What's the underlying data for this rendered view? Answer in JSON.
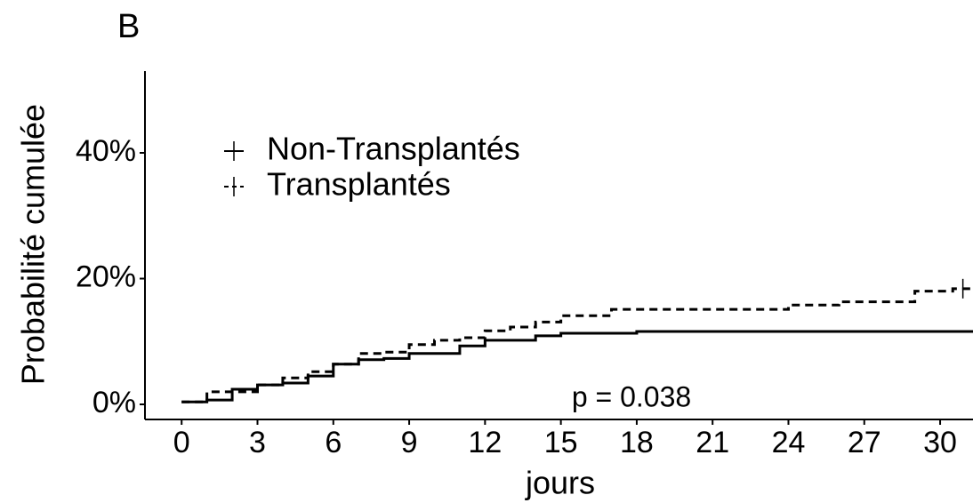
{
  "chart_data": {
    "type": "step",
    "panel_label": "B",
    "xlabel": "jours",
    "ylabel": "Probabilité cumulée",
    "annotation": "p = 0.038",
    "xlim": [
      -1.45,
      31.3
    ],
    "xticks": [
      0,
      3,
      6,
      9,
      12,
      15,
      18,
      21,
      24,
      27,
      30
    ],
    "ylim": [
      -2.4,
      53
    ],
    "yticks": [
      {
        "value": 0,
        "label": "0%"
      },
      {
        "value": 20,
        "label": "20%"
      },
      {
        "value": 40,
        "label": "40%"
      }
    ],
    "series": [
      {
        "name": "Non-Transplantés",
        "color": "#000000",
        "dashed": false,
        "x": [
          0,
          1,
          2,
          3,
          4,
          5,
          6,
          7,
          8,
          9,
          11,
          12,
          14,
          15,
          18,
          31.3
        ],
        "values": [
          0.4,
          0.7,
          2.4,
          3.1,
          3.4,
          4.5,
          6.4,
          7.1,
          7.3,
          8.1,
          9.3,
          10.2,
          10.9,
          11.3,
          11.6,
          11.6
        ]
      },
      {
        "name": "Transplantés",
        "color": "#000000",
        "dashed": true,
        "x": [
          0,
          1,
          3,
          4,
          5,
          6,
          7,
          8,
          9,
          10,
          11,
          12,
          13,
          14,
          15,
          17,
          24,
          26,
          29,
          30.5,
          31.3
        ],
        "values": [
          0.4,
          2.0,
          3.1,
          4.2,
          5.2,
          6.4,
          8.1,
          8.3,
          9.5,
          10.2,
          10.6,
          11.7,
          12.3,
          13.1,
          14.1,
          15.1,
          15.8,
          16.3,
          18.0,
          18.4,
          18.4
        ],
        "censor_x": [
          30.9
        ],
        "censor_values": [
          18.4
        ]
      }
    ]
  }
}
